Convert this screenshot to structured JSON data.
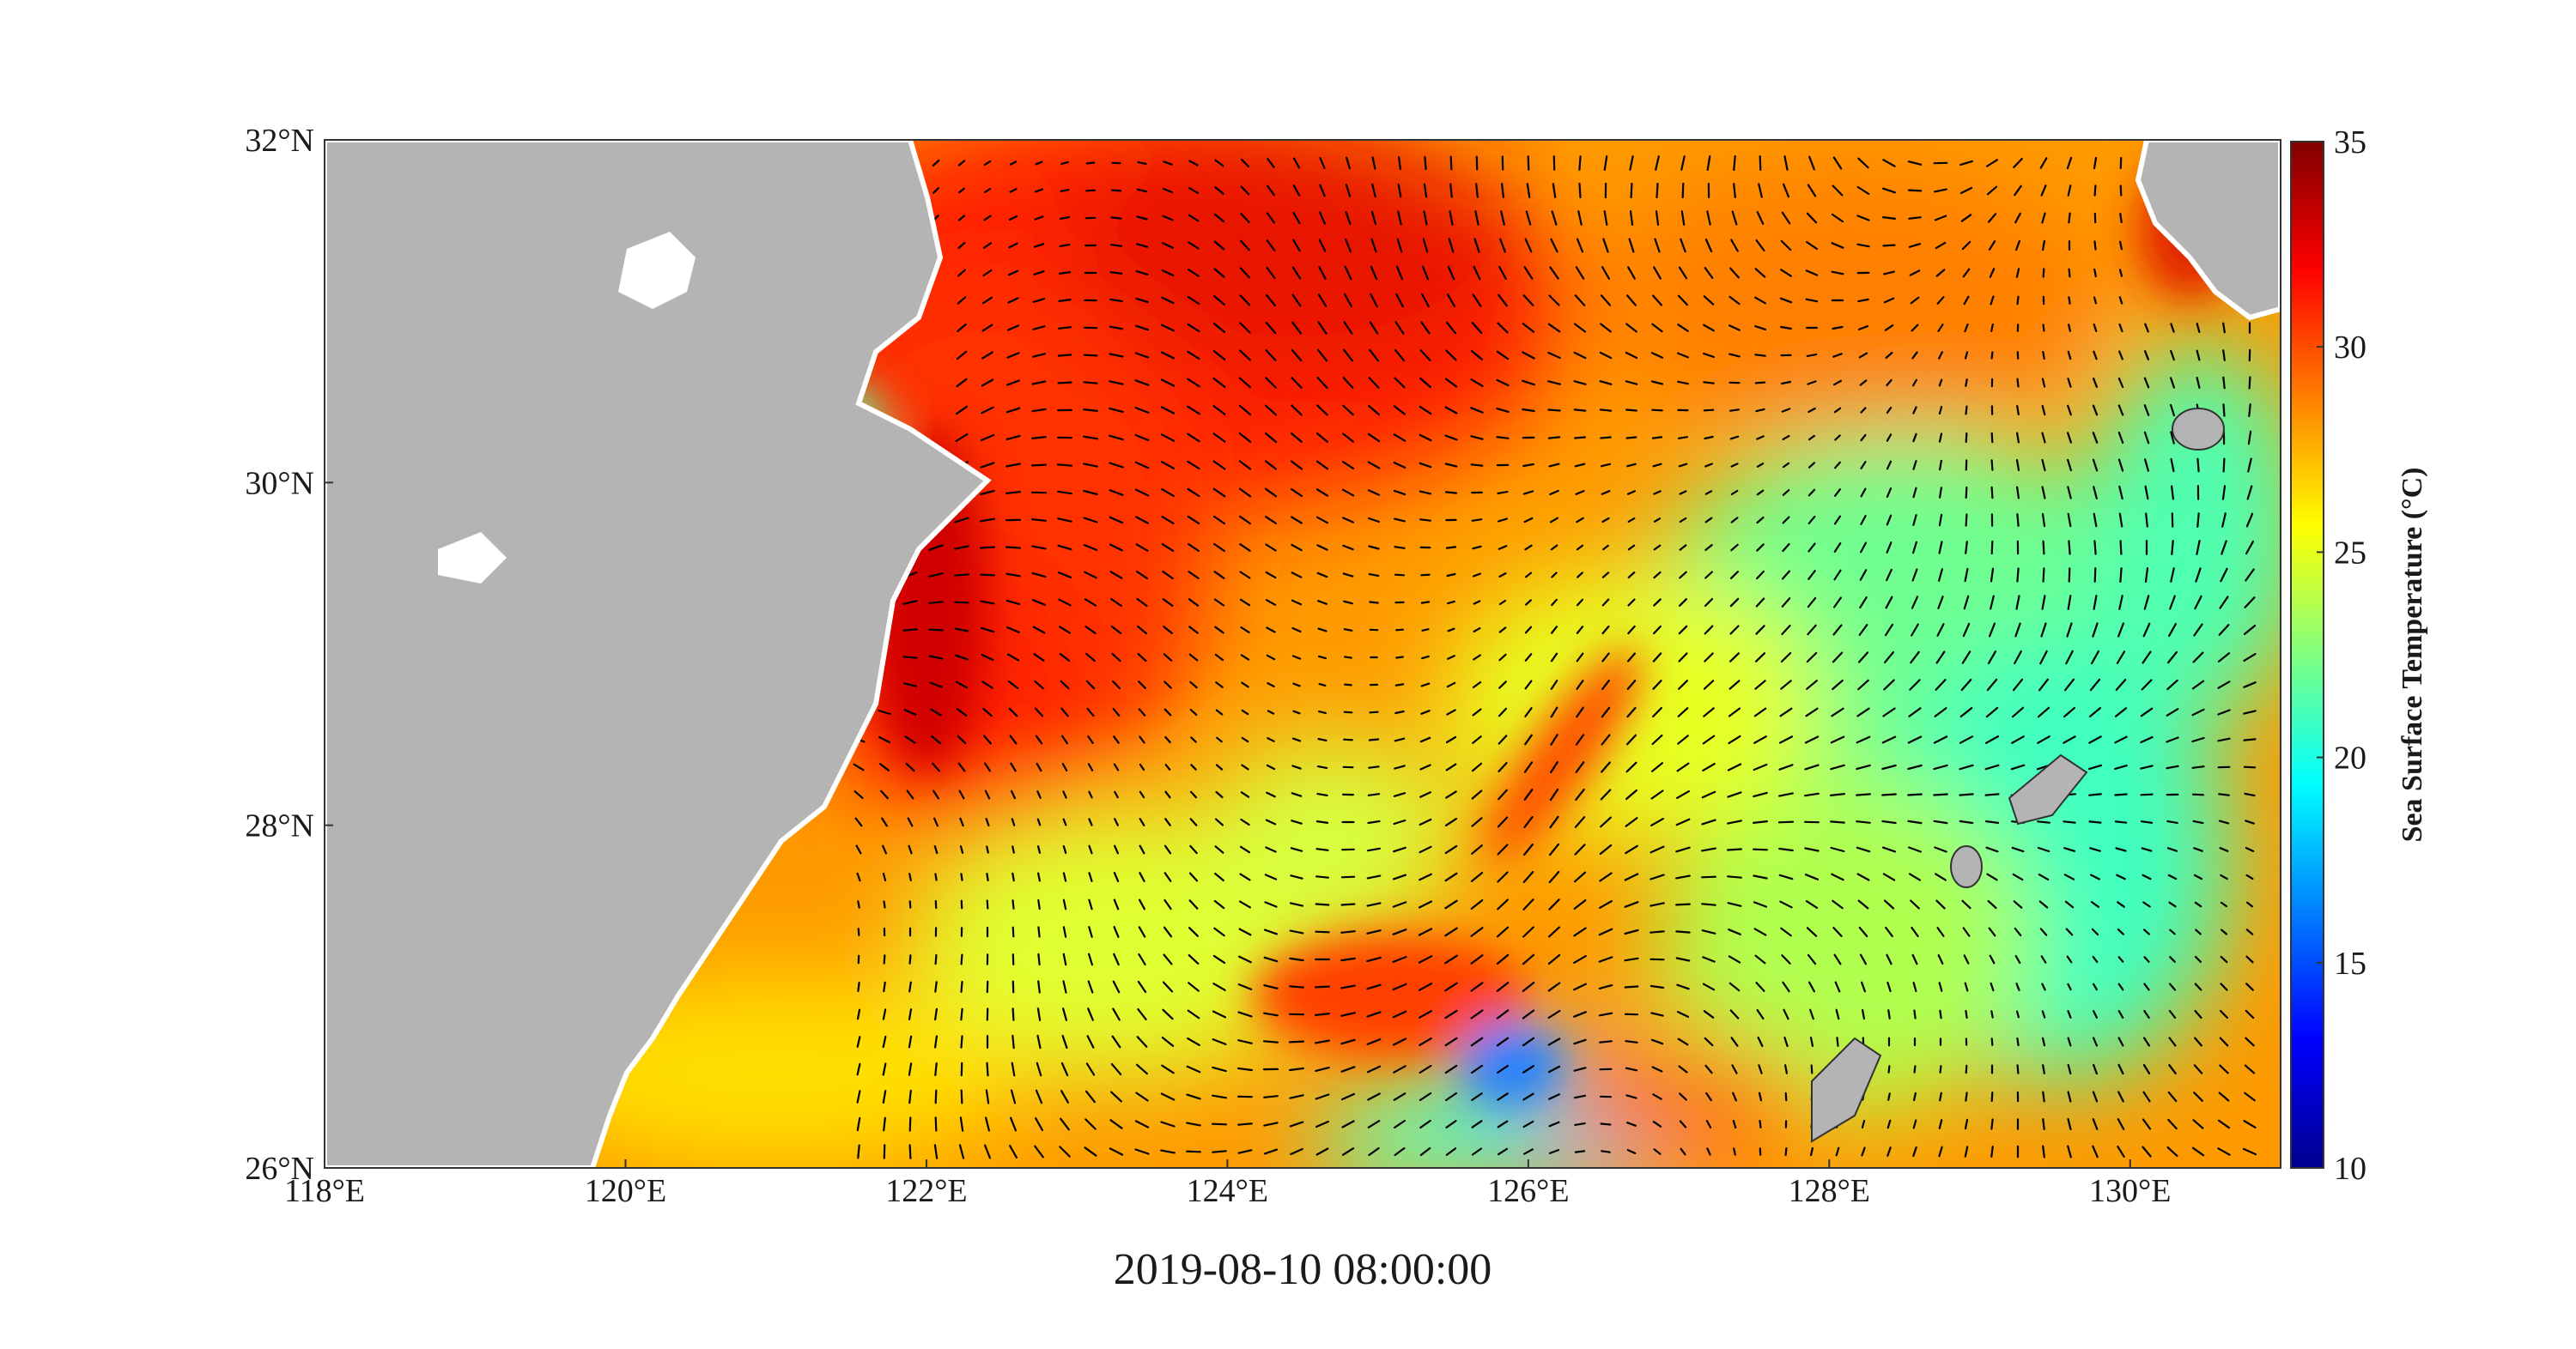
{
  "map": {
    "lon_range": [
      118,
      131
    ],
    "lat_range": [
      26,
      32
    ],
    "lon_ticks": [
      "118°E",
      "120°E",
      "122°E",
      "124°E",
      "126°E",
      "128°E",
      "130°E"
    ],
    "lat_ticks": [
      "32°N",
      "30°N",
      "28°N",
      "26°N"
    ],
    "land_color": "#b4b4b4",
    "coast_color": "#ffffff",
    "timestamp": "2019-08-10 08:00:00"
  },
  "colorbar": {
    "label": "Sea Surface Temperature (°C)",
    "range": [
      10,
      35
    ],
    "ticks": [
      "35",
      "30",
      "25",
      "20",
      "15",
      "10"
    ],
    "colormap": "jet",
    "stops": [
      "#00008f",
      "#0000ff",
      "#0080ff",
      "#00ffff",
      "#80ff80",
      "#ffff00",
      "#ff8000",
      "#ff0000",
      "#800000"
    ]
  },
  "fields": {
    "sst": "sea-surface-temperature",
    "vectors": "surface-current-vectors"
  }
}
